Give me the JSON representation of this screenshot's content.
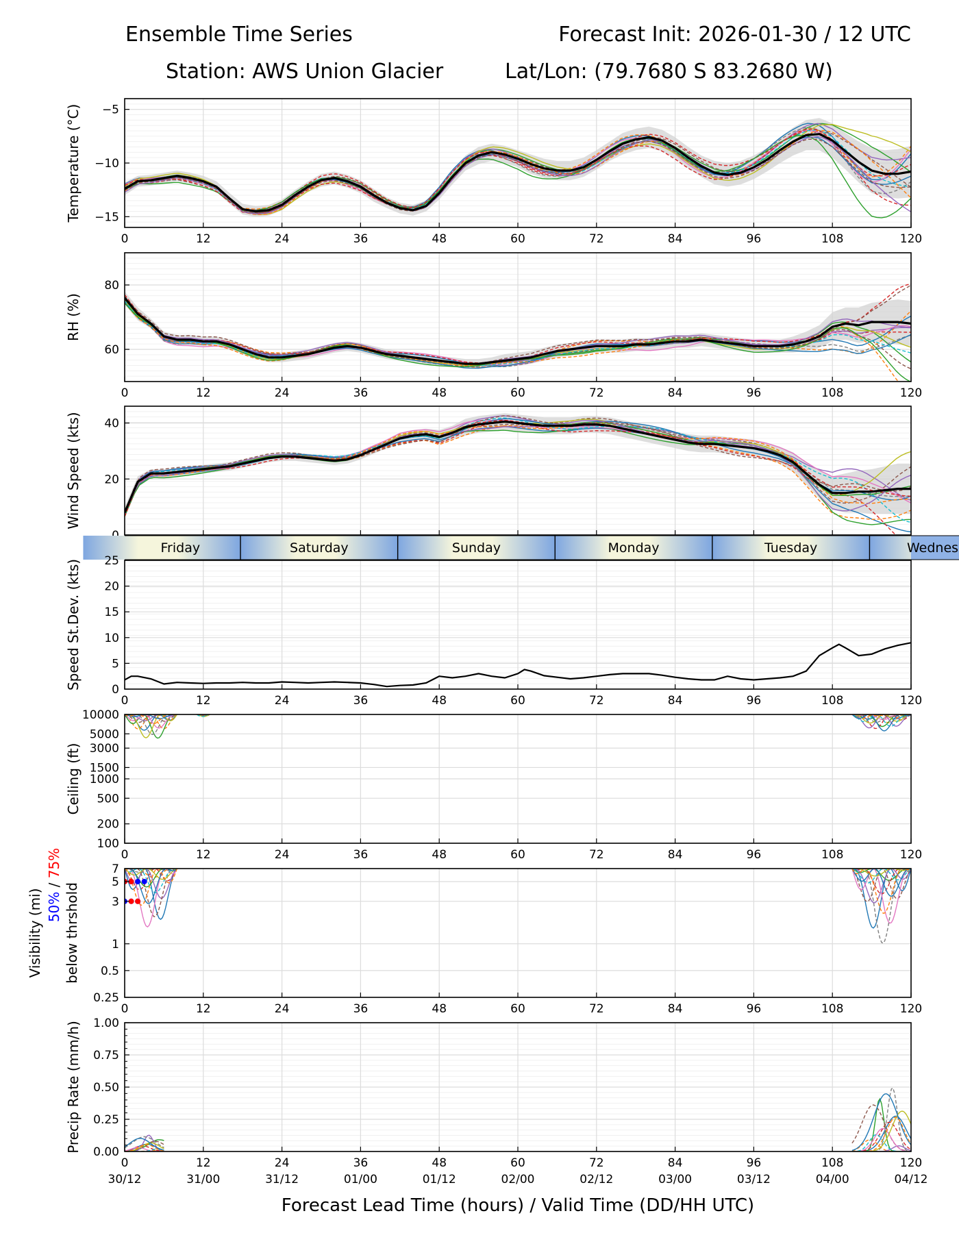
{
  "header": {
    "title": "Ensemble Time Series",
    "init": "Forecast Init: 2026-01-30 / 12 UTC",
    "station": "Station: AWS Union Glacier",
    "latlon": "Lat/Lon: (79.7680 S 83.2680 W)"
  },
  "x_axis": {
    "ticks": [
      0,
      12,
      24,
      36,
      48,
      60,
      72,
      84,
      96,
      108,
      120
    ],
    "valid_times": [
      "30/12",
      "31/00",
      "31/12",
      "01/00",
      "01/12",
      "02/00",
      "02/12",
      "03/00",
      "03/12",
      "04/00",
      "04/12"
    ],
    "label": "Forecast Lead Time (hours) / Valid Time (DD/HH UTC)",
    "range": [
      0,
      120
    ]
  },
  "day_band": {
    "labels": [
      "Friday",
      "Saturday",
      "Sunday",
      "Monday",
      "Tuesday",
      "Wednes"
    ],
    "day_boundaries_hours": [
      17.67,
      41.67,
      65.67,
      89.67,
      113.67
    ]
  },
  "colors": {
    "mean": "#000000",
    "spread": "#d3d3d3",
    "members": [
      "#1f77b4",
      "#ff7f0e",
      "#2ca02c",
      "#d62728",
      "#9467bd",
      "#8c564b",
      "#e377c2",
      "#7f7f7f",
      "#bcbd22",
      "#17becf"
    ],
    "vis_50": "#0000ff",
    "vis_75": "#ff0000",
    "day_blue": "#7ea6e0",
    "day_cream": "#f5f5dc"
  },
  "chart_data": [
    {
      "type": "line",
      "name": "temperature",
      "ylabel": "Temperature (°C)",
      "ylim": [
        -16,
        -4
      ],
      "yticks": [
        -15,
        -10,
        -5
      ],
      "grid": true,
      "mean_series": {
        "x": [
          0,
          2,
          4,
          6,
          8,
          10,
          12,
          14,
          16,
          18,
          20,
          22,
          24,
          26,
          28,
          30,
          32,
          34,
          36,
          38,
          40,
          42,
          44,
          46,
          48,
          50,
          52,
          54,
          56,
          58,
          60,
          62,
          64,
          66,
          68,
          70,
          72,
          74,
          76,
          78,
          80,
          82,
          84,
          86,
          88,
          90,
          92,
          94,
          96,
          98,
          100,
          102,
          104,
          106,
          108,
          110,
          112,
          114,
          116,
          118,
          120
        ],
        "y": [
          -12.4,
          -11.7,
          -11.6,
          -11.4,
          -11.2,
          -11.4,
          -11.7,
          -12.2,
          -13.3,
          -14.3,
          -14.5,
          -14.4,
          -13.9,
          -13.0,
          -12.2,
          -11.6,
          -11.4,
          -11.7,
          -12.2,
          -13.0,
          -13.7,
          -14.2,
          -14.4,
          -14.0,
          -12.8,
          -11.3,
          -10.0,
          -9.3,
          -9.0,
          -9.2,
          -9.6,
          -10.1,
          -10.5,
          -10.7,
          -10.7,
          -10.4,
          -9.7,
          -8.9,
          -8.2,
          -7.8,
          -7.6,
          -7.9,
          -8.6,
          -9.5,
          -10.3,
          -10.9,
          -11.1,
          -10.9,
          -10.4,
          -9.7,
          -8.8,
          -8.0,
          -7.4,
          -7.3,
          -7.9,
          -8.9,
          -9.9,
          -10.7,
          -11.0,
          -11.0,
          -10.8
        ]
      },
      "spread_halfwidth": [
        0.6,
        0.5,
        0.5,
        0.5,
        0.5,
        0.5,
        0.5,
        0.5,
        0.5,
        0.5,
        0.5,
        0.5,
        0.5,
        0.5,
        0.5,
        0.6,
        0.6,
        0.6,
        0.6,
        0.6,
        0.5,
        0.5,
        0.5,
        0.5,
        0.6,
        0.7,
        0.7,
        0.8,
        0.8,
        0.8,
        0.8,
        0.9,
        0.9,
        0.9,
        0.9,
        0.9,
        0.9,
        0.9,
        1.0,
        1.0,
        1.0,
        1.0,
        1.0,
        1.0,
        1.0,
        1.1,
        1.1,
        1.1,
        1.1,
        1.1,
        1.2,
        1.3,
        1.4,
        1.5,
        1.6,
        1.7,
        1.9,
        2.1,
        2.2,
        2.3,
        2.4
      ],
      "members": 16,
      "member_spread_growth": 1.0
    },
    {
      "type": "line",
      "name": "relative_humidity",
      "ylabel": "RH (%)",
      "ylim": [
        50,
        90
      ],
      "yticks": [
        60,
        80
      ],
      "grid": true,
      "mean_series": {
        "x": [
          0,
          2,
          4,
          6,
          8,
          10,
          12,
          14,
          16,
          18,
          20,
          22,
          24,
          26,
          28,
          30,
          32,
          34,
          36,
          38,
          40,
          42,
          44,
          46,
          48,
          50,
          52,
          54,
          56,
          58,
          60,
          62,
          64,
          66,
          68,
          70,
          72,
          74,
          76,
          78,
          80,
          82,
          84,
          86,
          88,
          90,
          92,
          94,
          96,
          98,
          100,
          102,
          104,
          106,
          108,
          110,
          112,
          114,
          116,
          118,
          120
        ],
        "y": [
          76,
          71,
          68,
          64,
          63,
          63,
          62.5,
          62.5,
          61.5,
          60,
          58.5,
          57.5,
          57.5,
          58,
          58.5,
          59.5,
          60.5,
          61,
          60.5,
          59.5,
          58.5,
          58,
          57.5,
          57,
          56.5,
          56,
          55.5,
          55.5,
          56,
          56.5,
          57,
          57.5,
          58.5,
          59.5,
          60,
          60.5,
          61,
          61,
          61,
          61.5,
          61.5,
          62,
          62.5,
          62.5,
          63,
          62.5,
          62,
          61.5,
          61,
          61,
          61,
          61.5,
          62.5,
          64,
          67,
          68,
          67.5,
          68.5,
          68.5,
          68.5,
          68
        ]
      },
      "spread_halfwidth": [
        2,
        2,
        1.5,
        1.5,
        1.5,
        1.5,
        1.5,
        1.5,
        1.5,
        1.5,
        1.5,
        1.5,
        1.5,
        1.5,
        1.5,
        1.5,
        1.5,
        1.5,
        1.5,
        1.5,
        1.5,
        1.5,
        1.5,
        1.5,
        1.5,
        1.5,
        1.5,
        1.5,
        1.5,
        2,
        2,
        2,
        2,
        2,
        2,
        2,
        2,
        2,
        2,
        2,
        2,
        2,
        2,
        2,
        2,
        2,
        2,
        2,
        2,
        2,
        2,
        2.5,
        3,
        3.5,
        4.5,
        5,
        5.5,
        6,
        6.5,
        7,
        7
      ],
      "members": 16,
      "member_spread_growth": 1.0
    },
    {
      "type": "line",
      "name": "wind_speed",
      "ylabel": "Wind Speed (kts)",
      "ylim": [
        0,
        46
      ],
      "yticks": [
        0,
        20,
        40
      ],
      "grid": true,
      "mean_series": {
        "x": [
          0,
          2,
          4,
          6,
          8,
          10,
          12,
          14,
          16,
          18,
          20,
          22,
          24,
          26,
          28,
          30,
          32,
          34,
          36,
          38,
          40,
          42,
          44,
          46,
          48,
          50,
          52,
          54,
          56,
          58,
          60,
          62,
          64,
          66,
          68,
          70,
          72,
          74,
          76,
          78,
          80,
          82,
          84,
          86,
          88,
          90,
          92,
          94,
          96,
          98,
          100,
          102,
          104,
          106,
          108,
          110,
          112,
          114,
          116,
          118,
          120
        ],
        "y": [
          8,
          19,
          22,
          22,
          22.5,
          23,
          23.5,
          24,
          24.5,
          25.5,
          26.5,
          27.5,
          28,
          28,
          27.5,
          27,
          26.5,
          27,
          28.5,
          30.5,
          32.5,
          34.5,
          35.5,
          36,
          35,
          36.5,
          38.5,
          39.5,
          40,
          40.5,
          40,
          39.5,
          39,
          39,
          39,
          39.5,
          39.5,
          39,
          38,
          37,
          36,
          35,
          34,
          33,
          32.5,
          32.5,
          32,
          31.5,
          31,
          30,
          28.5,
          26,
          22,
          18,
          15,
          15,
          15.5,
          15.5,
          16,
          16.5,
          16.5
        ]
      },
      "spread_halfwidth": [
        2,
        2,
        1.5,
        1.5,
        1.5,
        1.5,
        1.5,
        1.5,
        1.5,
        1.5,
        1.5,
        1.5,
        1.5,
        1.5,
        1.5,
        1.5,
        1.5,
        1.5,
        1.5,
        1.5,
        1.5,
        2,
        2,
        2,
        2.5,
        2.5,
        3,
        3,
        3,
        3,
        3,
        3,
        3,
        3,
        3,
        3,
        3,
        3,
        3,
        3,
        3,
        3,
        3,
        3,
        3,
        3,
        3,
        3,
        3,
        3,
        3,
        3.5,
        4,
        5,
        6,
        7,
        7.5,
        8,
        8.5,
        9,
        9
      ],
      "members": 16,
      "member_spread_growth": 1.0
    },
    {
      "type": "line",
      "name": "speed_stdev",
      "ylabel": "Speed St.Dev. (kts)",
      "ylim": [
        0,
        25
      ],
      "yticks": [
        0,
        5,
        10,
        15,
        20,
        25
      ],
      "grid": true,
      "series": {
        "x": [
          0,
          1,
          2,
          4,
          6,
          8,
          10,
          12,
          14,
          16,
          18,
          20,
          22,
          24,
          26,
          28,
          30,
          32,
          34,
          36,
          38,
          40,
          42,
          44,
          46,
          48,
          50,
          52,
          54,
          56,
          58,
          60,
          61,
          62,
          64,
          66,
          68,
          70,
          72,
          74,
          76,
          78,
          80,
          82,
          84,
          86,
          88,
          90,
          92,
          94,
          96,
          98,
          100,
          102,
          104,
          106,
          108,
          109,
          110,
          112,
          114,
          116,
          118,
          120
        ],
        "y": [
          1.8,
          2.5,
          2.5,
          2.0,
          1.0,
          1.3,
          1.2,
          1.1,
          1.2,
          1.2,
          1.3,
          1.2,
          1.2,
          1.4,
          1.3,
          1.2,
          1.3,
          1.4,
          1.3,
          1.2,
          0.9,
          0.5,
          0.7,
          0.8,
          1.2,
          2.5,
          2.2,
          2.5,
          3.0,
          2.5,
          2.2,
          3.0,
          3.8,
          3.5,
          2.6,
          2.3,
          2.0,
          2.2,
          2.5,
          2.8,
          3.0,
          3.0,
          3.0,
          2.7,
          2.3,
          2.0,
          1.8,
          1.8,
          2.5,
          2.0,
          1.8,
          2.0,
          2.2,
          2.5,
          3.5,
          6.5,
          8.0,
          8.7,
          8.0,
          6.5,
          6.8,
          7.8,
          8.5,
          9.0
        ]
      }
    },
    {
      "type": "line",
      "name": "ceiling",
      "ylabel": "Ceiling (ft)",
      "yscale": "log",
      "ylim": [
        100,
        10000
      ],
      "ytick_labels": [
        "10000",
        "5000",
        "3000",
        "1500",
        "1000",
        "500",
        "200",
        "100"
      ],
      "grid": true,
      "member_segments": [
        {
          "x_range": [
            0,
            8
          ],
          "min_value": 3600
        },
        {
          "x_range": [
            11,
            13
          ],
          "min_value": 9000
        },
        {
          "x_range": [
            111,
            120
          ],
          "min_value": 5200
        }
      ]
    },
    {
      "type": "line",
      "name": "visibility",
      "ylabel": "Visibility (mi)",
      "ylabel_parts": [
        "50%",
        "/",
        "75%",
        "below thrshold"
      ],
      "yscale": "log",
      "ylim": [
        0.25,
        7
      ],
      "ytick_labels": [
        "7",
        "5",
        "3",
        "1",
        "0.5",
        "0.25"
      ],
      "grid": true,
      "threshold_markers": [
        {
          "level": "50%",
          "y": 3,
          "x": [
            0,
            1,
            2
          ]
        },
        {
          "level": "50%",
          "y": 5,
          "x": [
            0,
            1,
            2,
            3
          ]
        },
        {
          "level": "75%",
          "y": 5,
          "x": [
            0,
            1
          ]
        },
        {
          "level": "75%",
          "y": 3,
          "x": [
            1,
            2
          ]
        }
      ],
      "member_segments": [
        {
          "x_range": [
            0,
            8
          ],
          "min_value": 1.3
        },
        {
          "x_range": [
            111,
            120
          ],
          "min_value": 0.9
        }
      ]
    },
    {
      "type": "line",
      "name": "precip_rate",
      "ylabel": "Precip Rate (mm/h)",
      "ylim": [
        0,
        1
      ],
      "yticks": [
        0.0,
        0.25,
        0.5,
        0.75,
        1.0
      ],
      "ytick_labels": [
        "0.00",
        "0.25",
        "0.50",
        "0.75",
        "1.00"
      ],
      "grid": true,
      "member_peaks": [
        {
          "x_range": [
            0,
            6
          ],
          "peak": 0.13
        },
        {
          "x_range": [
            111,
            120
          ],
          "peak": 0.5
        }
      ]
    }
  ]
}
